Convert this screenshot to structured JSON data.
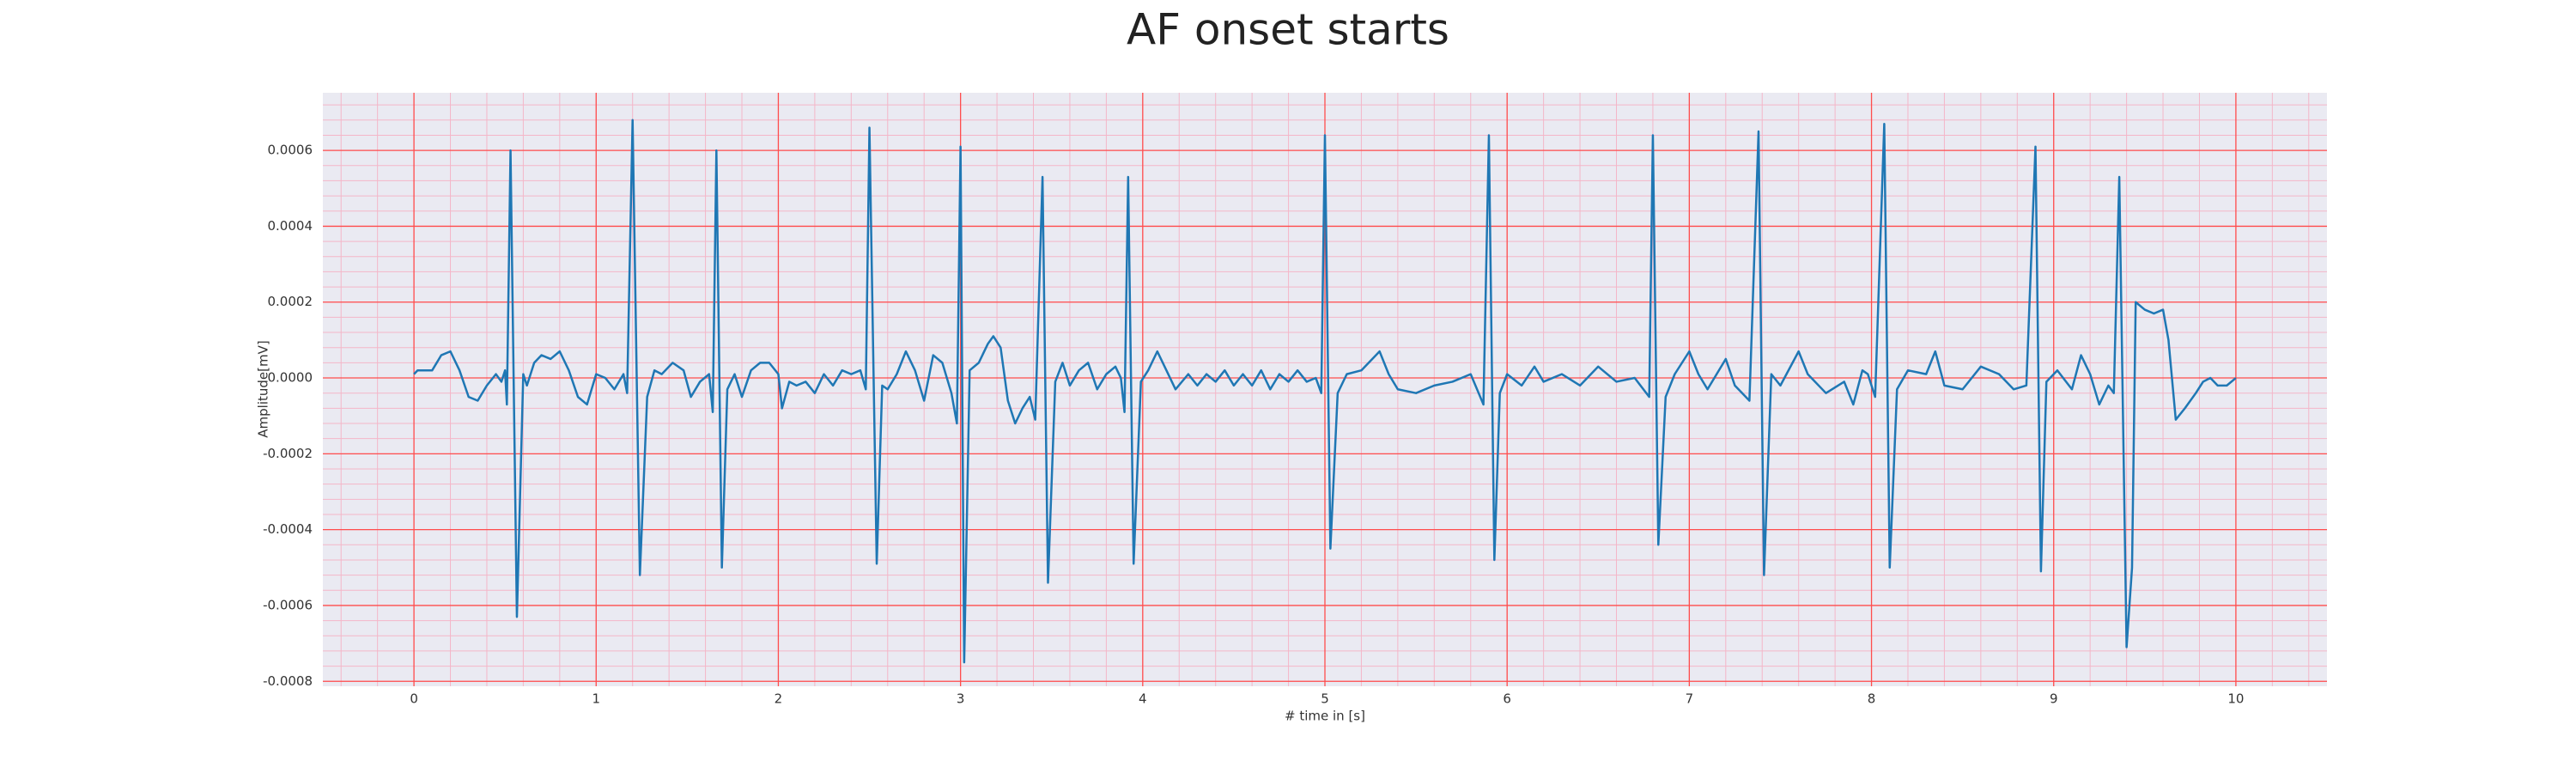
{
  "chart_data": {
    "type": "line",
    "title": "AF onset starts",
    "xlabel": "# time in [s]",
    "ylabel": "Amplitude[mV]",
    "x": [
      0,
      0.02,
      0.1,
      0.15,
      0.2,
      0.25,
      0.3,
      0.35,
      0.4,
      0.45,
      0.48,
      0.5,
      0.51,
      0.53,
      0.565,
      0.6,
      0.62,
      0.66,
      0.7,
      0.75,
      0.8,
      0.85,
      0.9,
      0.95,
      1.0,
      1.05,
      1.1,
      1.15,
      1.17,
      1.2,
      1.24,
      1.28,
      1.32,
      1.36,
      1.42,
      1.48,
      1.52,
      1.57,
      1.62,
      1.64,
      1.66,
      1.69,
      1.72,
      1.76,
      1.8,
      1.85,
      1.9,
      1.95,
      2.0,
      2.02,
      2.06,
      2.1,
      2.15,
      2.2,
      2.25,
      2.3,
      2.35,
      2.4,
      2.45,
      2.48,
      2.5,
      2.54,
      2.57,
      2.6,
      2.65,
      2.7,
      2.75,
      2.8,
      2.85,
      2.9,
      2.95,
      2.98,
      3.0,
      3.02,
      3.05,
      3.1,
      3.15,
      3.18,
      3.22,
      3.26,
      3.3,
      3.34,
      3.38,
      3.41,
      3.45,
      3.48,
      3.52,
      3.56,
      3.6,
      3.65,
      3.7,
      3.75,
      3.8,
      3.85,
      3.88,
      3.9,
      3.92,
      3.95,
      3.99,
      4.03,
      4.08,
      4.13,
      4.18,
      4.25,
      4.3,
      4.35,
      4.4,
      4.45,
      4.5,
      4.55,
      4.6,
      4.65,
      4.7,
      4.75,
      4.8,
      4.85,
      4.9,
      4.95,
      4.98,
      5.0,
      5.03,
      5.07,
      5.12,
      5.2,
      5.3,
      5.35,
      5.4,
      5.5,
      5.6,
      5.7,
      5.8,
      5.87,
      5.9,
      5.93,
      5.96,
      6.0,
      6.08,
      6.15,
      6.2,
      6.3,
      6.4,
      6.5,
      6.6,
      6.7,
      6.78,
      6.8,
      6.83,
      6.87,
      6.92,
      7.0,
      7.05,
      7.1,
      7.2,
      7.25,
      7.33,
      7.38,
      7.41,
      7.45,
      7.5,
      7.6,
      7.65,
      7.75,
      7.85,
      7.9,
      7.95,
      7.98,
      8.02,
      8.07,
      8.1,
      8.14,
      8.2,
      8.3,
      8.35,
      8.4,
      8.5,
      8.6,
      8.7,
      8.78,
      8.85,
      8.9,
      8.93,
      8.96,
      9.02,
      9.1,
      9.15,
      9.2,
      9.25,
      9.3,
      9.33,
      9.36,
      9.4,
      9.43,
      9.45,
      9.5,
      9.55,
      9.6,
      9.63,
      9.67,
      9.72,
      9.78,
      9.82,
      9.86,
      9.9,
      9.95,
      10.0
    ],
    "values": [
      1e-05,
      2e-05,
      2e-05,
      6e-05,
      7e-05,
      2e-05,
      -5e-05,
      -6e-05,
      -2e-05,
      1e-05,
      -1e-05,
      2e-05,
      -7e-05,
      0.0006,
      -0.00063,
      1e-05,
      -2e-05,
      4e-05,
      6e-05,
      5e-05,
      7e-05,
      2e-05,
      -5e-05,
      -7e-05,
      1e-05,
      0,
      -3e-05,
      1e-05,
      -4e-05,
      0.00068,
      -0.00052,
      -5e-05,
      2e-05,
      1e-05,
      4e-05,
      2e-05,
      -5e-05,
      -1e-05,
      1e-05,
      -9e-05,
      0.0006,
      -0.0005,
      -3e-05,
      1e-05,
      -5e-05,
      2e-05,
      4e-05,
      4e-05,
      1e-05,
      -8e-05,
      -1e-05,
      -2e-05,
      -1e-05,
      -4e-05,
      1e-05,
      -2e-05,
      2e-05,
      1e-05,
      2e-05,
      -3e-05,
      0.00066,
      -0.00049,
      -2e-05,
      -3e-05,
      1e-05,
      7e-05,
      2e-05,
      -6e-05,
      6e-05,
      4e-05,
      -4e-05,
      -0.00012,
      0.00061,
      -0.00075,
      2e-05,
      4e-05,
      9e-05,
      0.00011,
      8e-05,
      -6e-05,
      -0.00012,
      -8e-05,
      -5e-05,
      -0.00011,
      0.00053,
      -0.00054,
      -1e-05,
      4e-05,
      -2e-05,
      2e-05,
      4e-05,
      -3e-05,
      1e-05,
      3e-05,
      0,
      -9e-05,
      0.00053,
      -0.00049,
      -1e-05,
      2e-05,
      7e-05,
      2e-05,
      -3e-05,
      1e-05,
      -2e-05,
      1e-05,
      -1e-05,
      2e-05,
      -2e-05,
      1e-05,
      -2e-05,
      2e-05,
      -3e-05,
      1e-05,
      -1e-05,
      2e-05,
      -1e-05,
      0,
      -4e-05,
      0.00064,
      -0.00045,
      -4e-05,
      1e-05,
      2e-05,
      7e-05,
      1e-05,
      -3e-05,
      -4e-05,
      -2e-05,
      -1e-05,
      1e-05,
      -7e-05,
      0.00064,
      -0.00048,
      -4e-05,
      1e-05,
      -2e-05,
      3e-05,
      -1e-05,
      1e-05,
      -2e-05,
      3e-05,
      -1e-05,
      0,
      -5e-05,
      0.00064,
      -0.00044,
      -5e-05,
      1e-05,
      7e-05,
      1e-05,
      -3e-05,
      5e-05,
      -2e-05,
      -6e-05,
      0.00065,
      -0.00052,
      1e-05,
      -2e-05,
      7e-05,
      1e-05,
      -4e-05,
      -1e-05,
      -7e-05,
      2e-05,
      1e-05,
      -5e-05,
      0.00067,
      -0.0005,
      -3e-05,
      2e-05,
      1e-05,
      7e-05,
      -2e-05,
      -3e-05,
      3e-05,
      1e-05,
      -3e-05,
      -2e-05,
      0.00061,
      -0.00051,
      -1e-05,
      2e-05,
      -3e-05,
      6e-05,
      1e-05,
      -7e-05,
      -2e-05,
      -4e-05,
      0.00053,
      -0.00071,
      -0.0005,
      0.0002,
      0.00018,
      0.00017,
      0.00018,
      0.0001,
      -0.00011,
      -8e-05,
      -4e-05,
      -1e-05,
      0,
      -2e-05,
      -2e-05,
      0
    ],
    "color": "#1f77b4",
    "xlim": [
      -0.5,
      10.5
    ],
    "xticks": [
      0,
      1,
      2,
      3,
      4,
      5,
      6,
      7,
      8,
      9,
      10
    ],
    "ylim": [
      -0.000813,
      0.000752
    ],
    "yticks": [
      -0.0008,
      -0.0006,
      -0.0004,
      -0.0002,
      {
        "value": 0,
        "label": "0.0000"
      },
      0.0002,
      0.0004,
      0.0006
    ],
    "grid": true,
    "minor_grid": true,
    "grid_color": "#ff4d4d",
    "minor_grid_color": "#f4b6c8",
    "background": "#eaeaf2"
  }
}
